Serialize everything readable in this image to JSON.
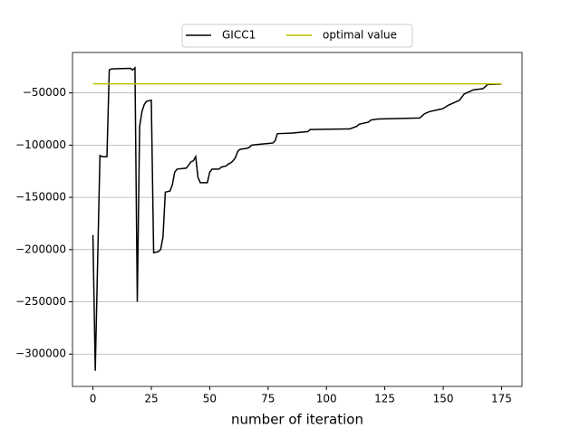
{
  "chart_data": {
    "type": "line",
    "xlabel": "number of iteration",
    "xlim": [
      -8.75,
      183.75
    ],
    "ylim": [
      -331000,
      -11300
    ],
    "xticks": [
      0,
      25,
      50,
      75,
      100,
      125,
      150,
      175
    ],
    "yticks": [
      {
        "value": -300000,
        "label": "−300000"
      },
      {
        "value": -250000,
        "label": "−250000"
      },
      {
        "value": -200000,
        "label": "−200000"
      },
      {
        "value": -150000,
        "label": "−150000"
      },
      {
        "value": -100000,
        "label": "−100000"
      },
      {
        "value": -50000,
        "label": "−50000"
      }
    ],
    "grid": "y",
    "legend": "upper center outside",
    "series": [
      {
        "name": "GICC1",
        "color": "#000000",
        "x": [
          0,
          1,
          3,
          4,
          6,
          7,
          8,
          16,
          17,
          18,
          19,
          20,
          21,
          22,
          23,
          25,
          26,
          28,
          29,
          30,
          31,
          33,
          34,
          35,
          36,
          40,
          41,
          42,
          43,
          44,
          45,
          46,
          49,
          50,
          51,
          54,
          55,
          57,
          58,
          59,
          60,
          61,
          62,
          63,
          66,
          67,
          68,
          72,
          77,
          78,
          79,
          85,
          92,
          93,
          110,
          113,
          114,
          118,
          119,
          122,
          130,
          140,
          142,
          144,
          148,
          150,
          152,
          155,
          157,
          159,
          161,
          163,
          167,
          169,
          175
        ],
        "values": [
          -186000,
          -316000,
          -110000,
          -111000,
          -111000,
          -28000,
          -27000,
          -26500,
          -28000,
          -26000,
          -250000,
          -82000,
          -68000,
          -61000,
          -58000,
          -57000,
          -203000,
          -202000,
          -200000,
          -188000,
          -145000,
          -144000,
          -138000,
          -126000,
          -123000,
          -122000,
          -119000,
          -116000,
          -115000,
          -111000,
          -131000,
          -136000,
          -136000,
          -126000,
          -123000,
          -123000,
          -121000,
          -120000,
          -118000,
          -117000,
          -115000,
          -112000,
          -106000,
          -104000,
          -103000,
          -102000,
          -100000,
          -99000,
          -98000,
          -96000,
          -89000,
          -88500,
          -87000,
          -85000,
          -84500,
          -82000,
          -80000,
          -78000,
          -76000,
          -75000,
          -74500,
          -74000,
          -70000,
          -68000,
          -66000,
          -65000,
          -62000,
          -59000,
          -57000,
          -51000,
          -49000,
          -47000,
          -46000,
          -42000,
          -41500
        ]
      },
      {
        "name": "optimal value",
        "color": "#bfbf00",
        "x": [
          0,
          175
        ],
        "values": [
          -41350,
          -41350
        ]
      }
    ]
  }
}
